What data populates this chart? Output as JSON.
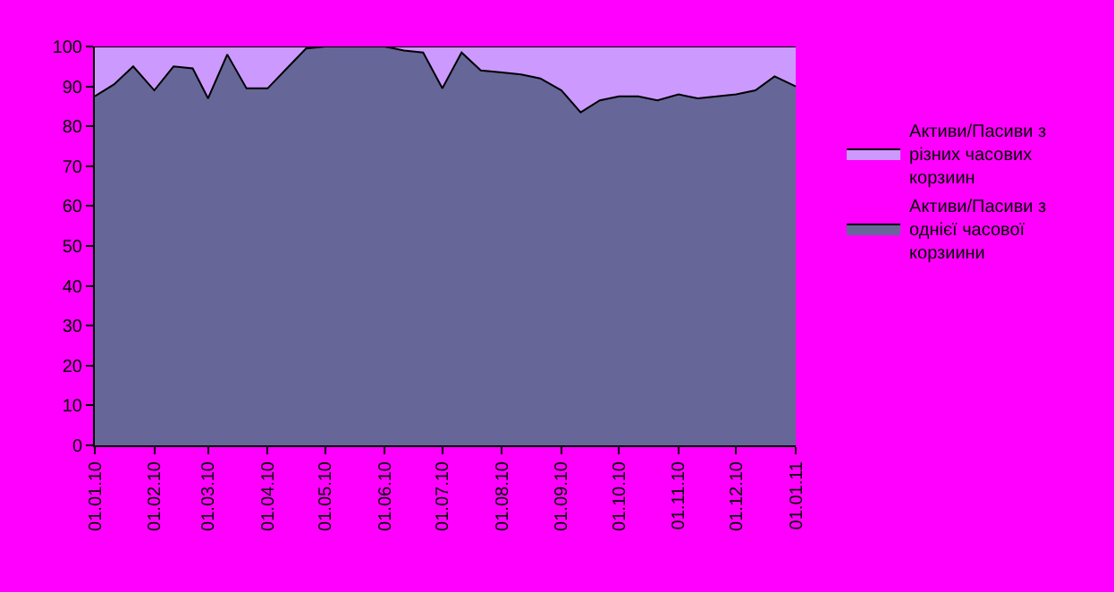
{
  "chart_data": {
    "type": "area",
    "stacked": true,
    "x": [
      "2010-01-01",
      "2010-01-11",
      "2010-01-21",
      "2010-02-01",
      "2010-02-11",
      "2010-02-21",
      "2010-03-01",
      "2010-03-11",
      "2010-03-21",
      "2010-04-01",
      "2010-04-11",
      "2010-04-21",
      "2010-05-01",
      "2010-05-11",
      "2010-05-21",
      "2010-06-01",
      "2010-06-11",
      "2010-06-21",
      "2010-07-01",
      "2010-07-11",
      "2010-07-21",
      "2010-08-01",
      "2010-08-11",
      "2010-08-21",
      "2010-09-01",
      "2010-09-11",
      "2010-09-21",
      "2010-10-01",
      "2010-10-11",
      "2010-10-21",
      "2010-11-01",
      "2010-11-11",
      "2010-11-21",
      "2010-12-01",
      "2010-12-11",
      "2010-12-21",
      "2011-01-01"
    ],
    "series": [
      {
        "name": "Активи/Пасиви з однієї часової корзиини",
        "color": "#666699",
        "values": [
          87.5,
          90.5,
          95,
          89,
          95,
          94.5,
          87,
          98,
          89.5,
          89.5,
          94.5,
          99.5,
          100,
          100,
          100,
          100,
          99,
          98.5,
          89.5,
          98.5,
          94,
          93.5,
          93,
          92,
          89,
          83.5,
          86.5,
          87.5,
          87.5,
          86.5,
          88,
          87,
          87.5,
          88,
          89,
          92.5,
          90
        ]
      },
      {
        "name": "Активи/Пасиви з різних часових корзиин",
        "color": "#cc99ff",
        "values": [
          12.5,
          9.5,
          5,
          11,
          5,
          5.5,
          13,
          2,
          10.5,
          10.5,
          5.5,
          0.5,
          0,
          0,
          0,
          0,
          1,
          1.5,
          10.5,
          1.5,
          6,
          6.5,
          7,
          8,
          11,
          16.5,
          13.5,
          12.5,
          12.5,
          13.5,
          12,
          13,
          12.5,
          12,
          11,
          7.5,
          10
        ]
      }
    ],
    "xlim": [
      "2010-01-01",
      "2011-01-01"
    ],
    "xticks": [
      {
        "value": "2010-01-01",
        "label": "01.01.10"
      },
      {
        "value": "2010-02-01",
        "label": "01.02.10"
      },
      {
        "value": "2010-03-01",
        "label": "01.03.10"
      },
      {
        "value": "2010-04-01",
        "label": "01.04.10"
      },
      {
        "value": "2010-05-01",
        "label": "01.05.10"
      },
      {
        "value": "2010-06-01",
        "label": "01.06.10"
      },
      {
        "value": "2010-07-01",
        "label": "01.07.10"
      },
      {
        "value": "2010-08-01",
        "label": "01.08.10"
      },
      {
        "value": "2010-09-01",
        "label": "01.09.10"
      },
      {
        "value": "2010-10-01",
        "label": "01.10.10"
      },
      {
        "value": "2010-11-01",
        "label": "01.11.10"
      },
      {
        "value": "2010-12-01",
        "label": "01.12.10"
      },
      {
        "value": "2011-01-01",
        "label": "01.01.11"
      }
    ],
    "ylim": [
      0,
      100
    ],
    "yticks": [
      0,
      10,
      20,
      30,
      40,
      50,
      60,
      70,
      80,
      90,
      100
    ],
    "legend": "right",
    "marker": "none"
  }
}
